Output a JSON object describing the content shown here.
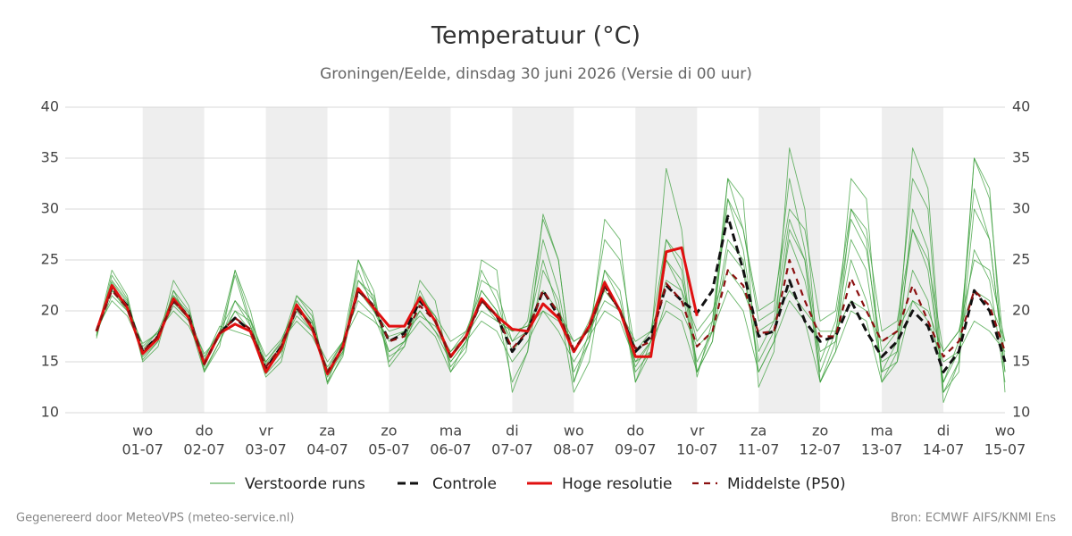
{
  "chart_data": {
    "type": "line",
    "title": "Temperatuur (°C)",
    "subtitle": "Groningen/Eelde, dinsdag 30 juni 2026 (Versie di 00 uur)",
    "footer_left": "Gegenereerd door MeteoVPS (meteo-service.nl)",
    "footer_right": "Bron: ECMWF AIFS/KNMI Ens",
    "categories": [
      null,
      null,
      null,
      "01-07",
      null,
      null,
      null,
      "02-07",
      null,
      null,
      null,
      "03-07",
      null,
      null,
      null,
      "04-07",
      null,
      null,
      null,
      "05-07",
      null,
      null,
      null,
      "06-07",
      null,
      null,
      null,
      "07-07",
      null,
      null,
      null,
      "08-07",
      null,
      null,
      null,
      "09-07",
      null,
      null,
      null,
      "10-07",
      null,
      null,
      null,
      "11-07",
      null,
      null,
      null,
      "12-07",
      null,
      null,
      null,
      "13-07",
      null,
      null,
      null,
      "14-07",
      null,
      null,
      null,
      "15-07"
    ],
    "weekdays": [
      null,
      null,
      null,
      "wo",
      null,
      null,
      null,
      "do",
      null,
      null,
      null,
      "vr",
      null,
      null,
      null,
      "za",
      null,
      null,
      null,
      "zo",
      null,
      null,
      null,
      "ma",
      null,
      null,
      null,
      "di",
      null,
      null,
      null,
      "wo",
      null,
      null,
      null,
      "do",
      null,
      null,
      null,
      "vr",
      null,
      null,
      null,
      "za",
      null,
      null,
      null,
      "zo",
      null,
      null,
      null,
      "ma",
      null,
      null,
      null,
      "di",
      null,
      null,
      null,
      "wo"
    ],
    "ylim": [
      10,
      40
    ],
    "yticks": [
      10,
      15,
      20,
      25,
      30,
      35,
      40
    ],
    "grid": true,
    "series": [
      {
        "name": "Verstoorde runs",
        "color": "#3a9e3a",
        "style": "thin",
        "members": [
          [
            17.5,
            23,
            21,
            15.5,
            17,
            22,
            20,
            14.5,
            18,
            24,
            19,
            14,
            16,
            21,
            19,
            13,
            17,
            25,
            21,
            16,
            17,
            22,
            19,
            15,
            17,
            24,
            21,
            16,
            18,
            27,
            22,
            14,
            17,
            24,
            21,
            14,
            16,
            25,
            22,
            15,
            18,
            31,
            26,
            16,
            19,
            29,
            25,
            14,
            18,
            27,
            24,
            14,
            17,
            28,
            24,
            13,
            17,
            32,
            27,
            14
          ],
          [
            18,
            22,
            20,
            16,
            17.5,
            20.5,
            19,
            15,
            17.5,
            23.5,
            18.5,
            14.5,
            16,
            20,
            18,
            14,
            16,
            24,
            20,
            17,
            18,
            20,
            18,
            16,
            18,
            22,
            20,
            17,
            18,
            25,
            20,
            16,
            19,
            23,
            20,
            15,
            17,
            20,
            19,
            14,
            17,
            26,
            24,
            15,
            18,
            27,
            23,
            16,
            17,
            25,
            21,
            15,
            16,
            24,
            21,
            13,
            16,
            26,
            23,
            13
          ],
          [
            17.8,
            21.5,
            20,
            15.8,
            17.2,
            21.5,
            19.8,
            14.2,
            17,
            21,
            19.2,
            15,
            16.8,
            21.5,
            19.5,
            13.5,
            16,
            23,
            21.5,
            15,
            17,
            19,
            17.5,
            14,
            17,
            23,
            22,
            17,
            19,
            29,
            25,
            13,
            18,
            27,
            25,
            16,
            18,
            27,
            24,
            13.5,
            19,
            33,
            28,
            19,
            20,
            33,
            26,
            15,
            19,
            29,
            26,
            16,
            18,
            33,
            30,
            11,
            15,
            35,
            31,
            15
          ],
          [
            18.2,
            21,
            19.5,
            16.2,
            18,
            20,
            18.5,
            15.2,
            18.5,
            18,
            17.5,
            15,
            17,
            19,
            17.5,
            14.5,
            17,
            20,
            19,
            17.5,
            18,
            19.5,
            18.5,
            16,
            17.5,
            20,
            19,
            18,
            18.5,
            20,
            18,
            15,
            17.5,
            20,
            19,
            15,
            16,
            21,
            20,
            16.5,
            18,
            22,
            20,
            14,
            17,
            21,
            19,
            13,
            16,
            20,
            19,
            13,
            15,
            21,
            19,
            15,
            16,
            19,
            18,
            16
          ],
          [
            17.6,
            24,
            21.5,
            15.2,
            17,
            23,
            20.5,
            14,
            16.5,
            24,
            20,
            13.8,
            15.5,
            21.5,
            20,
            12.8,
            15.8,
            25,
            22,
            14.5,
            16.5,
            23,
            21,
            14,
            16,
            25,
            24,
            12,
            16,
            29.5,
            25,
            13,
            17,
            29,
            27,
            13,
            17,
            34,
            28,
            14,
            17,
            33,
            31,
            12.5,
            16,
            36,
            30,
            13,
            17,
            33,
            31,
            13,
            16,
            36,
            32,
            12,
            14,
            35,
            32,
            12
          ],
          [
            18.1,
            22.8,
            20.8,
            16.5,
            18,
            21.5,
            19.5,
            15.5,
            18,
            21,
            18.5,
            14.8,
            16.5,
            19.5,
            18,
            15,
            17,
            21,
            19.5,
            16,
            17,
            20,
            18,
            15,
            17,
            19,
            18,
            15,
            17,
            20,
            19,
            17,
            18,
            21,
            20,
            17,
            18,
            23,
            22,
            18,
            20,
            24,
            22,
            18,
            19,
            22,
            20,
            18,
            18,
            21,
            20,
            17,
            18,
            21,
            20,
            16,
            18,
            22,
            21,
            17
          ],
          [
            17.3,
            23.5,
            21.2,
            15,
            16.5,
            22,
            19,
            14,
            17,
            20,
            18,
            13.5,
            15,
            21,
            19,
            13,
            15.5,
            23,
            21,
            15.5,
            16.5,
            21,
            19.5,
            14.5,
            16.5,
            22,
            20,
            13,
            16,
            24,
            21,
            12,
            15,
            24,
            22,
            13,
            16,
            27,
            25,
            14,
            18,
            27,
            25,
            14,
            17,
            28,
            25,
            13,
            16,
            30,
            27,
            14,
            15,
            30,
            26,
            12,
            15,
            30,
            27,
            14
          ],
          [
            18.3,
            22,
            20.2,
            16.8,
            17.8,
            20.8,
            19.2,
            15.8,
            17.5,
            20,
            19,
            15.5,
            17.2,
            20.5,
            18.8,
            14.2,
            17,
            22,
            20,
            18,
            18.5,
            21.5,
            19.5,
            17,
            18,
            21,
            19,
            18,
            18.5,
            22,
            20,
            17,
            18,
            22,
            20,
            14.5,
            17,
            25,
            23,
            17,
            19,
            31,
            28,
            20,
            21,
            30,
            28,
            19,
            20,
            30,
            28,
            18,
            19,
            28,
            25,
            16,
            18,
            25,
            24,
            17
          ]
        ]
      },
      {
        "name": "Controle",
        "color": "#111111",
        "style": "dashed",
        "values": [
          18,
          22.3,
          20.5,
          16,
          17.5,
          21,
          19.5,
          14.8,
          17.8,
          19.3,
          18,
          14.3,
          16.5,
          20.3,
          18.5,
          13.8,
          16.5,
          22,
          20.5,
          17,
          17.8,
          21,
          19,
          15.5,
          17.5,
          21,
          19.5,
          16,
          18,
          22,
          19.5,
          16,
          18.5,
          22.5,
          20,
          16,
          17.5,
          22.5,
          21,
          19.8,
          22,
          29.3,
          24,
          17.5,
          18,
          23,
          19,
          17,
          17.5,
          21,
          18,
          15.5,
          17,
          20,
          18.5,
          14,
          16,
          22,
          20,
          15
        ]
      },
      {
        "name": "Hoge resolutie",
        "color": "#e01010",
        "style": "solid",
        "values": [
          18,
          22.5,
          20.3,
          15.8,
          17.3,
          21.2,
          19.3,
          14.8,
          17.8,
          18.7,
          18,
          14,
          16.3,
          20.6,
          18.3,
          13.8,
          16.5,
          22.2,
          20.3,
          18.5,
          18.5,
          21.3,
          19,
          15.5,
          17.5,
          21.2,
          19.5,
          18.2,
          18,
          20.7,
          19.3,
          16,
          18.5,
          22.8,
          20,
          15.5,
          15.5,
          25.8,
          26.2,
          19.5,
          null,
          null,
          null,
          null,
          null,
          null,
          null,
          null,
          null,
          null,
          null,
          null,
          null,
          null,
          null,
          null,
          null,
          null,
          null,
          null
        ]
      },
      {
        "name": "Middelste (P50)",
        "color": "#8b1010",
        "style": "dashed-thin",
        "values": [
          18,
          22,
          20.3,
          16,
          17.5,
          21,
          19.3,
          14.8,
          17.8,
          19.3,
          18.2,
          14.5,
          16.5,
          20.3,
          18.5,
          14,
          16.5,
          22,
          20.5,
          17,
          17.5,
          20.5,
          19,
          15.5,
          17.5,
          21,
          19.5,
          16.3,
          18,
          22,
          19.8,
          16.2,
          18.3,
          22.3,
          20,
          16.3,
          17,
          22.7,
          21,
          16.5,
          18,
          24,
          22.5,
          17.8,
          18,
          25,
          21,
          17.5,
          17.5,
          23.2,
          20,
          17,
          18,
          22.5,
          19,
          15.5,
          17,
          22,
          20.5,
          16
        ]
      }
    ]
  }
}
